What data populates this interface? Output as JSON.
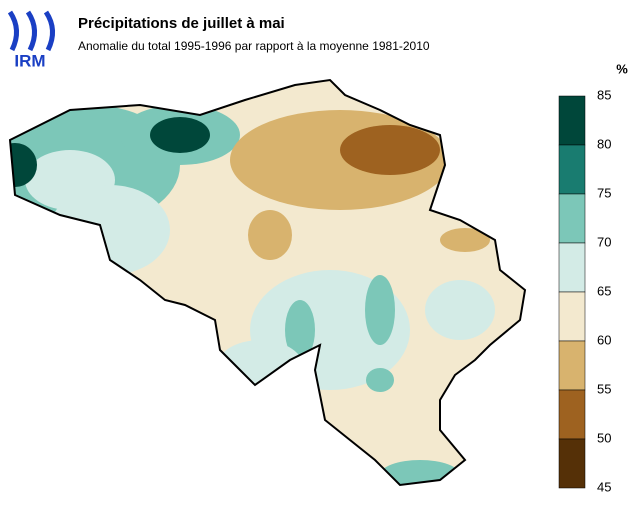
{
  "header": {
    "logo": "IRM",
    "title": "Précipitations de juillet à mai",
    "subtitle": "Anomalie du total 1995-1996 par rapport à la moyenne 1981-2010"
  },
  "legend": {
    "unit": "%",
    "ticks": [
      85,
      80,
      75,
      70,
      65,
      60,
      55,
      50,
      45
    ],
    "colors": [
      "#00473a",
      "#197c70",
      "#7cc7b8",
      "#d3ebe6",
      "#f3e9cf",
      "#d8b36e",
      "#9e6220",
      "#553007"
    ]
  }
}
